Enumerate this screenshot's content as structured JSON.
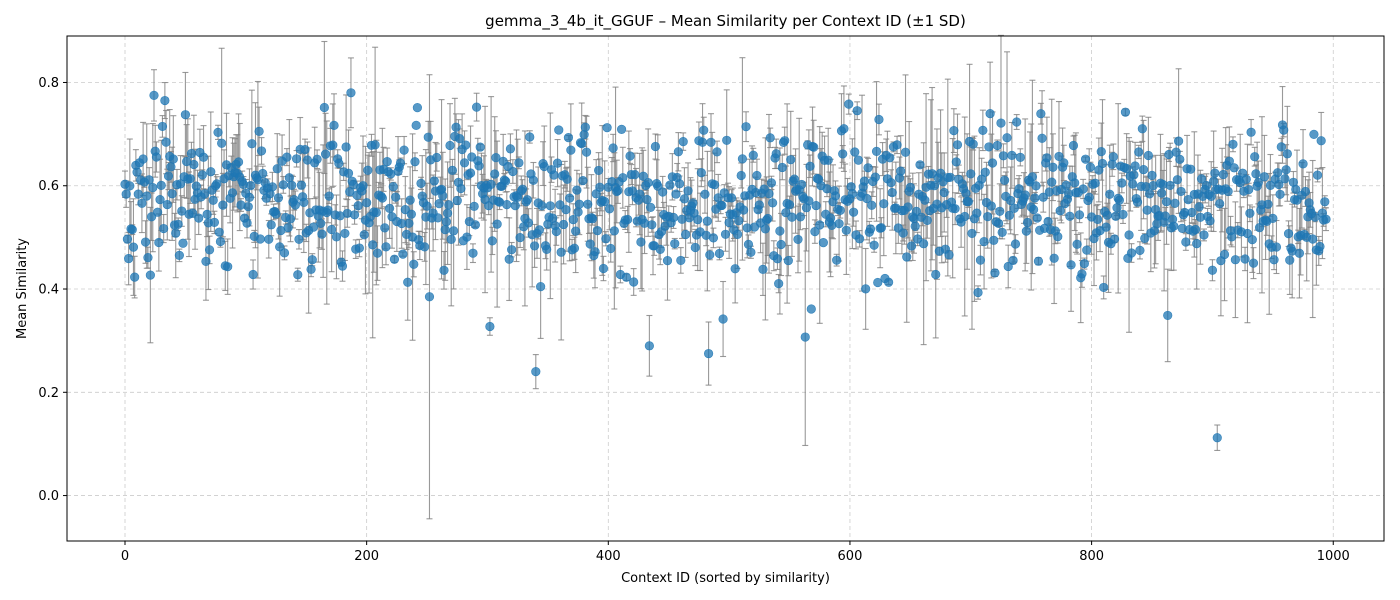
{
  "chart_data": {
    "type": "scatter",
    "title": "gemma_3_4b_it_GGUF – Mean Similarity per Context ID (±1 SD)",
    "xlabel": "Context ID (sorted by similarity)",
    "ylabel": "Mean Similarity",
    "xlim": [
      -48,
      1042
    ],
    "ylim": [
      -0.088,
      0.89
    ],
    "x_ticks": [
      0,
      200,
      400,
      600,
      800,
      1000
    ],
    "y_ticks": [
      0.0,
      0.2,
      0.4,
      0.6,
      0.8
    ],
    "y_tick_labels": [
      "0.0",
      "0.2",
      "0.4",
      "0.6",
      "0.8"
    ],
    "grid": true,
    "n_points": 995,
    "point_color": "#1f77b4",
    "errorbar_color": "#808080",
    "series": [
      {
        "values_range": [
          0.11,
          0.78
        ],
        "typical_mean": 0.57,
        "notable_points": [
          {
            "x": 24,
            "y": 0.775
          },
          {
            "x": 33,
            "y": 0.765
          },
          {
            "x": 187,
            "y": 0.78
          },
          {
            "x": 252,
            "y": 0.385,
            "sd": 0.43
          },
          {
            "x": 340,
            "y": 0.24,
            "sd": 0.033
          },
          {
            "x": 434,
            "y": 0.29
          },
          {
            "x": 483,
            "y": 0.275
          },
          {
            "x": 563,
            "y": 0.307,
            "sd": 0.21
          },
          {
            "x": 904,
            "y": 0.112
          }
        ]
      }
    ]
  }
}
